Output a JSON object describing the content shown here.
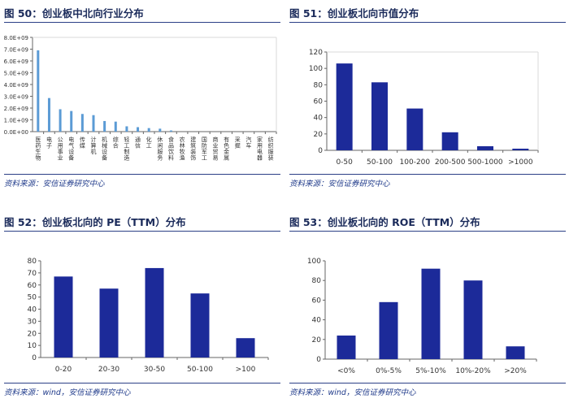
{
  "panels": [
    {
      "title": "图 50：创业板中北向行业分布",
      "source": "资料来源：安信证券研究中心"
    },
    {
      "title": "图 51：创业板北向市值分布",
      "source": "资料来源：安信证券研究中心"
    },
    {
      "title": "图 52：创业板北向的 PE（TTM）分布",
      "source": "资料来源：wind，安信证券研究中心"
    },
    {
      "title": "图 53：创业板北向的 ROE（TTM）分布",
      "source": "资料来源：wind，安信证券研究中心"
    }
  ],
  "colors": {
    "bar_light": "#5b9bd5",
    "bar_dark": "#1c2a99",
    "axis": "#666666",
    "title_rule": "#2b3f86"
  },
  "chart_data": [
    {
      "type": "bar",
      "title": "",
      "categories": [
        "医药生物",
        "电子",
        "公用事业",
        "电气设备",
        "传媒",
        "计算机",
        "机械设备",
        "综合",
        "轻工制造",
        "通信",
        "化工",
        "休闲服务",
        "食品饮料",
        "农林牧渔",
        "建筑装饰",
        "国防军工",
        "商业贸易",
        "有色金属",
        "采掘",
        "汽车",
        "家用电器",
        "纺织服装"
      ],
      "values": [
        6900000000.0,
        2850000000.0,
        1900000000.0,
        1750000000.0,
        1500000000.0,
        1400000000.0,
        900000000.0,
        850000000.0,
        450000000.0,
        380000000.0,
        300000000.0,
        250000000.0,
        100000000.0,
        0,
        0,
        0,
        0,
        0,
        0,
        0,
        0,
        0
      ],
      "yticks": [
        "0.0E+00",
        "1.0E+09",
        "2.0E+09",
        "3.0E+09",
        "4.0E+09",
        "5.0E+09",
        "6.0E+09",
        "7.0E+09",
        "8.0E+09"
      ],
      "ylim": [
        0,
        8000000000.0
      ]
    },
    {
      "type": "bar",
      "title": "",
      "categories": [
        "0-50",
        "50-100",
        "100-200",
        "200-500",
        "500-1000",
        ">1000"
      ],
      "values": [
        106,
        83,
        51,
        22,
        5,
        2
      ],
      "yticks": [
        "0",
        "20",
        "40",
        "60",
        "80",
        "100",
        "120"
      ],
      "ylim": [
        0,
        120
      ]
    },
    {
      "type": "bar",
      "title": "",
      "categories": [
        "0-20",
        "20-30",
        "30-50",
        "50-100",
        ">100"
      ],
      "values": [
        67,
        57,
        74,
        53,
        16
      ],
      "yticks": [
        "0",
        "10",
        "20",
        "30",
        "40",
        "50",
        "60",
        "70",
        "80"
      ],
      "ylim": [
        0,
        80
      ]
    },
    {
      "type": "bar",
      "title": "",
      "categories": [
        "<0%",
        "0%-5%",
        "5%-10%",
        "10%-20%",
        ">20%"
      ],
      "values": [
        24,
        58,
        92,
        80,
        13
      ],
      "yticks": [
        "0",
        "20",
        "40",
        "60",
        "80",
        "100"
      ],
      "ylim": [
        0,
        100
      ]
    }
  ]
}
